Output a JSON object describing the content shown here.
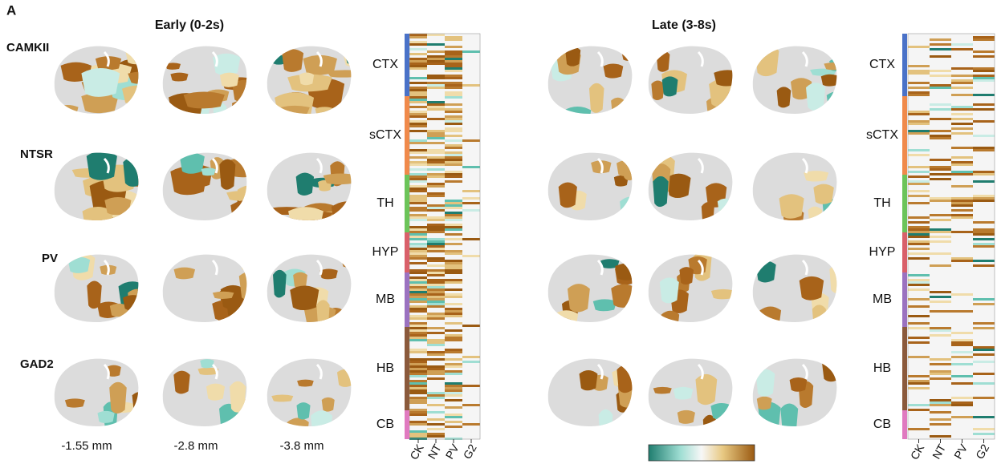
{
  "panel_label": "A",
  "groups": [
    {
      "title": "Early (0-2s)"
    },
    {
      "title": "Late (3-8s)"
    }
  ],
  "rows": [
    "CAMKII",
    "NTSR",
    "PV",
    "GAD2"
  ],
  "depths": [
    "-1.55 mm",
    "-2.8 mm",
    "-3.8 mm"
  ],
  "regions": [
    "CTX",
    "sCTX",
    "TH",
    "HYP",
    "MB",
    "HB",
    "CB"
  ],
  "heatmap_columns": [
    "CK",
    "NT",
    "PV",
    "G2"
  ]
}
